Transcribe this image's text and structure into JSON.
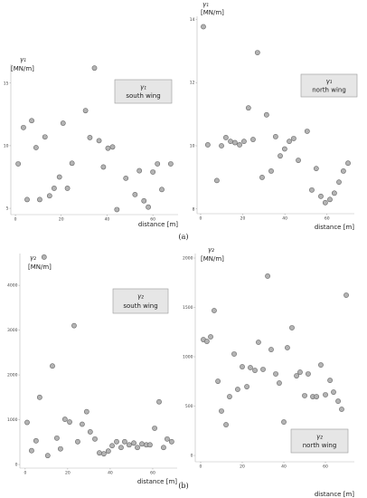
{
  "chart_data": [
    {
      "type": "scatter",
      "y_label": "γ₁",
      "y_unit": "[MN/m]",
      "legend_title": "γ₁",
      "legend_subtitle": "south wing",
      "x_label": "distance [m]",
      "color": "#b3b3b3",
      "x": [
        1.2,
        3.5,
        5.1,
        7.1,
        9.0,
        10.6,
        12.9,
        14.9,
        16.9,
        19.2,
        20.8,
        22.7,
        24.7,
        30.6,
        32.5,
        34.5,
        36.5,
        38.4,
        40.4,
        42.4,
        44.3,
        48.2,
        52.2,
        54.1,
        56.1,
        58.0,
        60.0,
        62.0,
        63.9,
        67.8
      ],
      "values": [
        8.55,
        11.45,
        5.7,
        12.0,
        9.85,
        5.7,
        10.7,
        6.0,
        6.6,
        7.5,
        11.8,
        6.6,
        8.6,
        12.8,
        10.65,
        16.2,
        10.4,
        8.3,
        9.8,
        9.9,
        4.9,
        7.4,
        6.1,
        8.0,
        5.6,
        5.1,
        7.9,
        8.55,
        6.5,
        8.55
      ],
      "xlim": [
        -2,
        71
      ],
      "ylim": [
        4.5,
        16.5
      ],
      "xticks": [
        0,
        20,
        40,
        60
      ],
      "yticks": [
        5,
        10,
        15
      ]
    },
    {
      "type": "scatter",
      "y_label": "γ₁",
      "y_unit": "[MN/m]",
      "legend_title": "γ₁",
      "legend_subtitle": "north wing",
      "x_label": "distance [m]",
      "color": "#b3b3b3",
      "x": [
        1.3,
        3.4,
        7.7,
        9.9,
        12.0,
        14.2,
        16.3,
        18.5,
        20.6,
        22.7,
        24.9,
        27.0,
        29.2,
        31.3,
        33.5,
        35.6,
        37.8,
        39.9,
        42.1,
        44.2,
        46.4,
        50.6,
        52.8,
        54.9,
        57.1,
        59.2,
        61.4,
        63.5,
        65.7,
        67.8,
        70.0
      ],
      "values": [
        13.77,
        10.03,
        8.9,
        10.0,
        10.26,
        10.14,
        10.1,
        10.03,
        10.14,
        11.2,
        10.2,
        12.95,
        9.0,
        10.98,
        9.2,
        10.29,
        9.68,
        9.9,
        10.14,
        10.23,
        9.54,
        10.46,
        8.6,
        9.28,
        8.4,
        8.2,
        8.3,
        8.5,
        8.85,
        9.2,
        9.45
      ],
      "xlim": [
        -1.7,
        73
      ],
      "ylim": [
        7.85,
        14.1
      ],
      "xticks": [
        0,
        20,
        40,
        60
      ],
      "yticks": [
        8,
        10,
        12,
        14
      ]
    },
    {
      "type": "scatter",
      "y_label": "γ₂",
      "y_unit": "[MN/m]",
      "legend_title": "γ₂",
      "legend_subtitle": "south wing",
      "x_label": "distance [m]",
      "color": "#b3b3b3",
      "x": [
        0.9,
        3.0,
        5.1,
        6.8,
        8.9,
        10.6,
        12.8,
        14.9,
        16.6,
        18.7,
        20.9,
        23.0,
        24.7,
        26.8,
        28.9,
        30.6,
        32.8,
        34.9,
        37.0,
        39.1,
        40.9,
        43.0,
        45.1,
        46.8,
        48.9,
        51.1,
        52.8,
        54.9,
        57.0,
        58.7,
        60.9,
        63.0,
        65.1,
        66.8,
        68.9
      ],
      "values": [
        940,
        310,
        530,
        1500,
        4630,
        200,
        2200,
        590,
        350,
        1010,
        950,
        3100,
        510,
        900,
        1180,
        730,
        570,
        260,
        240,
        300,
        420,
        510,
        380,
        510,
        440,
        480,
        380,
        460,
        440,
        440,
        810,
        1400,
        380,
        570,
        510
      ],
      "xlim": [
        -2.5,
        71.5
      ],
      "ylim": [
        -80,
        4710
      ],
      "xticks": [
        0,
        20,
        40,
        60
      ],
      "yticks": [
        0,
        1000,
        2000,
        3000,
        4000
      ]
    },
    {
      "type": "scatter",
      "y_label": "γ₂",
      "y_unit": "[MN/m]",
      "legend_title": "γ₂",
      "legend_subtitle": "north wing",
      "x_label": "distance [m]",
      "color": "#b3b3b3",
      "x": [
        1.3,
        3.0,
        4.8,
        6.5,
        8.3,
        10.0,
        12.2,
        13.9,
        16.1,
        17.8,
        20.0,
        22.2,
        23.9,
        26.1,
        27.8,
        30.0,
        32.2,
        33.9,
        36.1,
        37.8,
        40.0,
        41.7,
        43.9,
        46.1,
        47.8,
        50.0,
        51.7,
        53.9,
        55.7,
        57.8,
        60.0,
        62.2,
        63.9,
        66.1,
        67.8,
        70.0
      ],
      "values": [
        1174,
        1156,
        1202,
        1468,
        752,
        450,
        312,
        596,
        1028,
        670,
        899,
        697,
        890,
        862,
        1147,
        872,
        1817,
        1073,
        826,
        734,
        339,
        1092,
        1294,
        807,
        844,
        606,
        826,
        596,
        596,
        917,
        615,
        761,
        642,
        550,
        468,
        1624
      ],
      "xlim": [
        -2.6,
        73.9
      ],
      "ylim": [
        -64,
        2046
      ],
      "xticks": [
        0,
        20,
        40,
        60
      ],
      "yticks": [
        0,
        500,
        1000,
        1500,
        2000
      ]
    }
  ],
  "panel_labels": [
    "(a)",
    "(b)"
  ]
}
